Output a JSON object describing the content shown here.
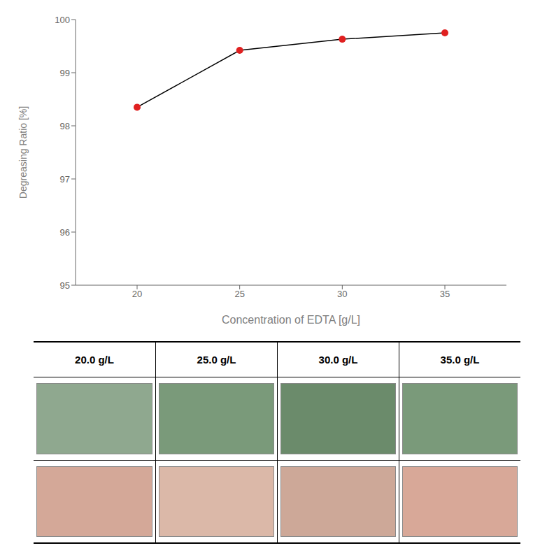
{
  "chart_data": [
    {
      "type": "line",
      "x": [
        20,
        25,
        30,
        35
      ],
      "series": [
        {
          "values": [
            98.35,
            99.42,
            99.63,
            99.75
          ],
          "color": "#000000",
          "colors": [
            "#e02020",
            "#e02020",
            "#e02020",
            "#e02020"
          ],
          "marker": "circle"
        }
      ],
      "xlabel": "Concentration of EDTA [g/L]",
      "ylabel": "Degreasing Ratio [%]",
      "xlim": [
        17,
        38
      ],
      "ylim": [
        95,
        100
      ],
      "xticks": [
        20,
        25,
        30,
        35
      ],
      "yticks": [
        95,
        96,
        97,
        98,
        99,
        100
      ],
      "grid": false
    },
    {
      "type": "table",
      "categories": [
        "20.0 g/L",
        "25.0 g/L",
        "30.0 g/L",
        "35.0 g/L"
      ],
      "series": [
        {
          "colors": [
            "#8fa88f",
            "#7a9a7a",
            "#6b8b6b",
            "#7a9a7a"
          ]
        },
        {
          "colors": [
            "#d4a898",
            "#dbb8a8",
            "#cda898",
            "#d8a898"
          ]
        }
      ]
    }
  ]
}
